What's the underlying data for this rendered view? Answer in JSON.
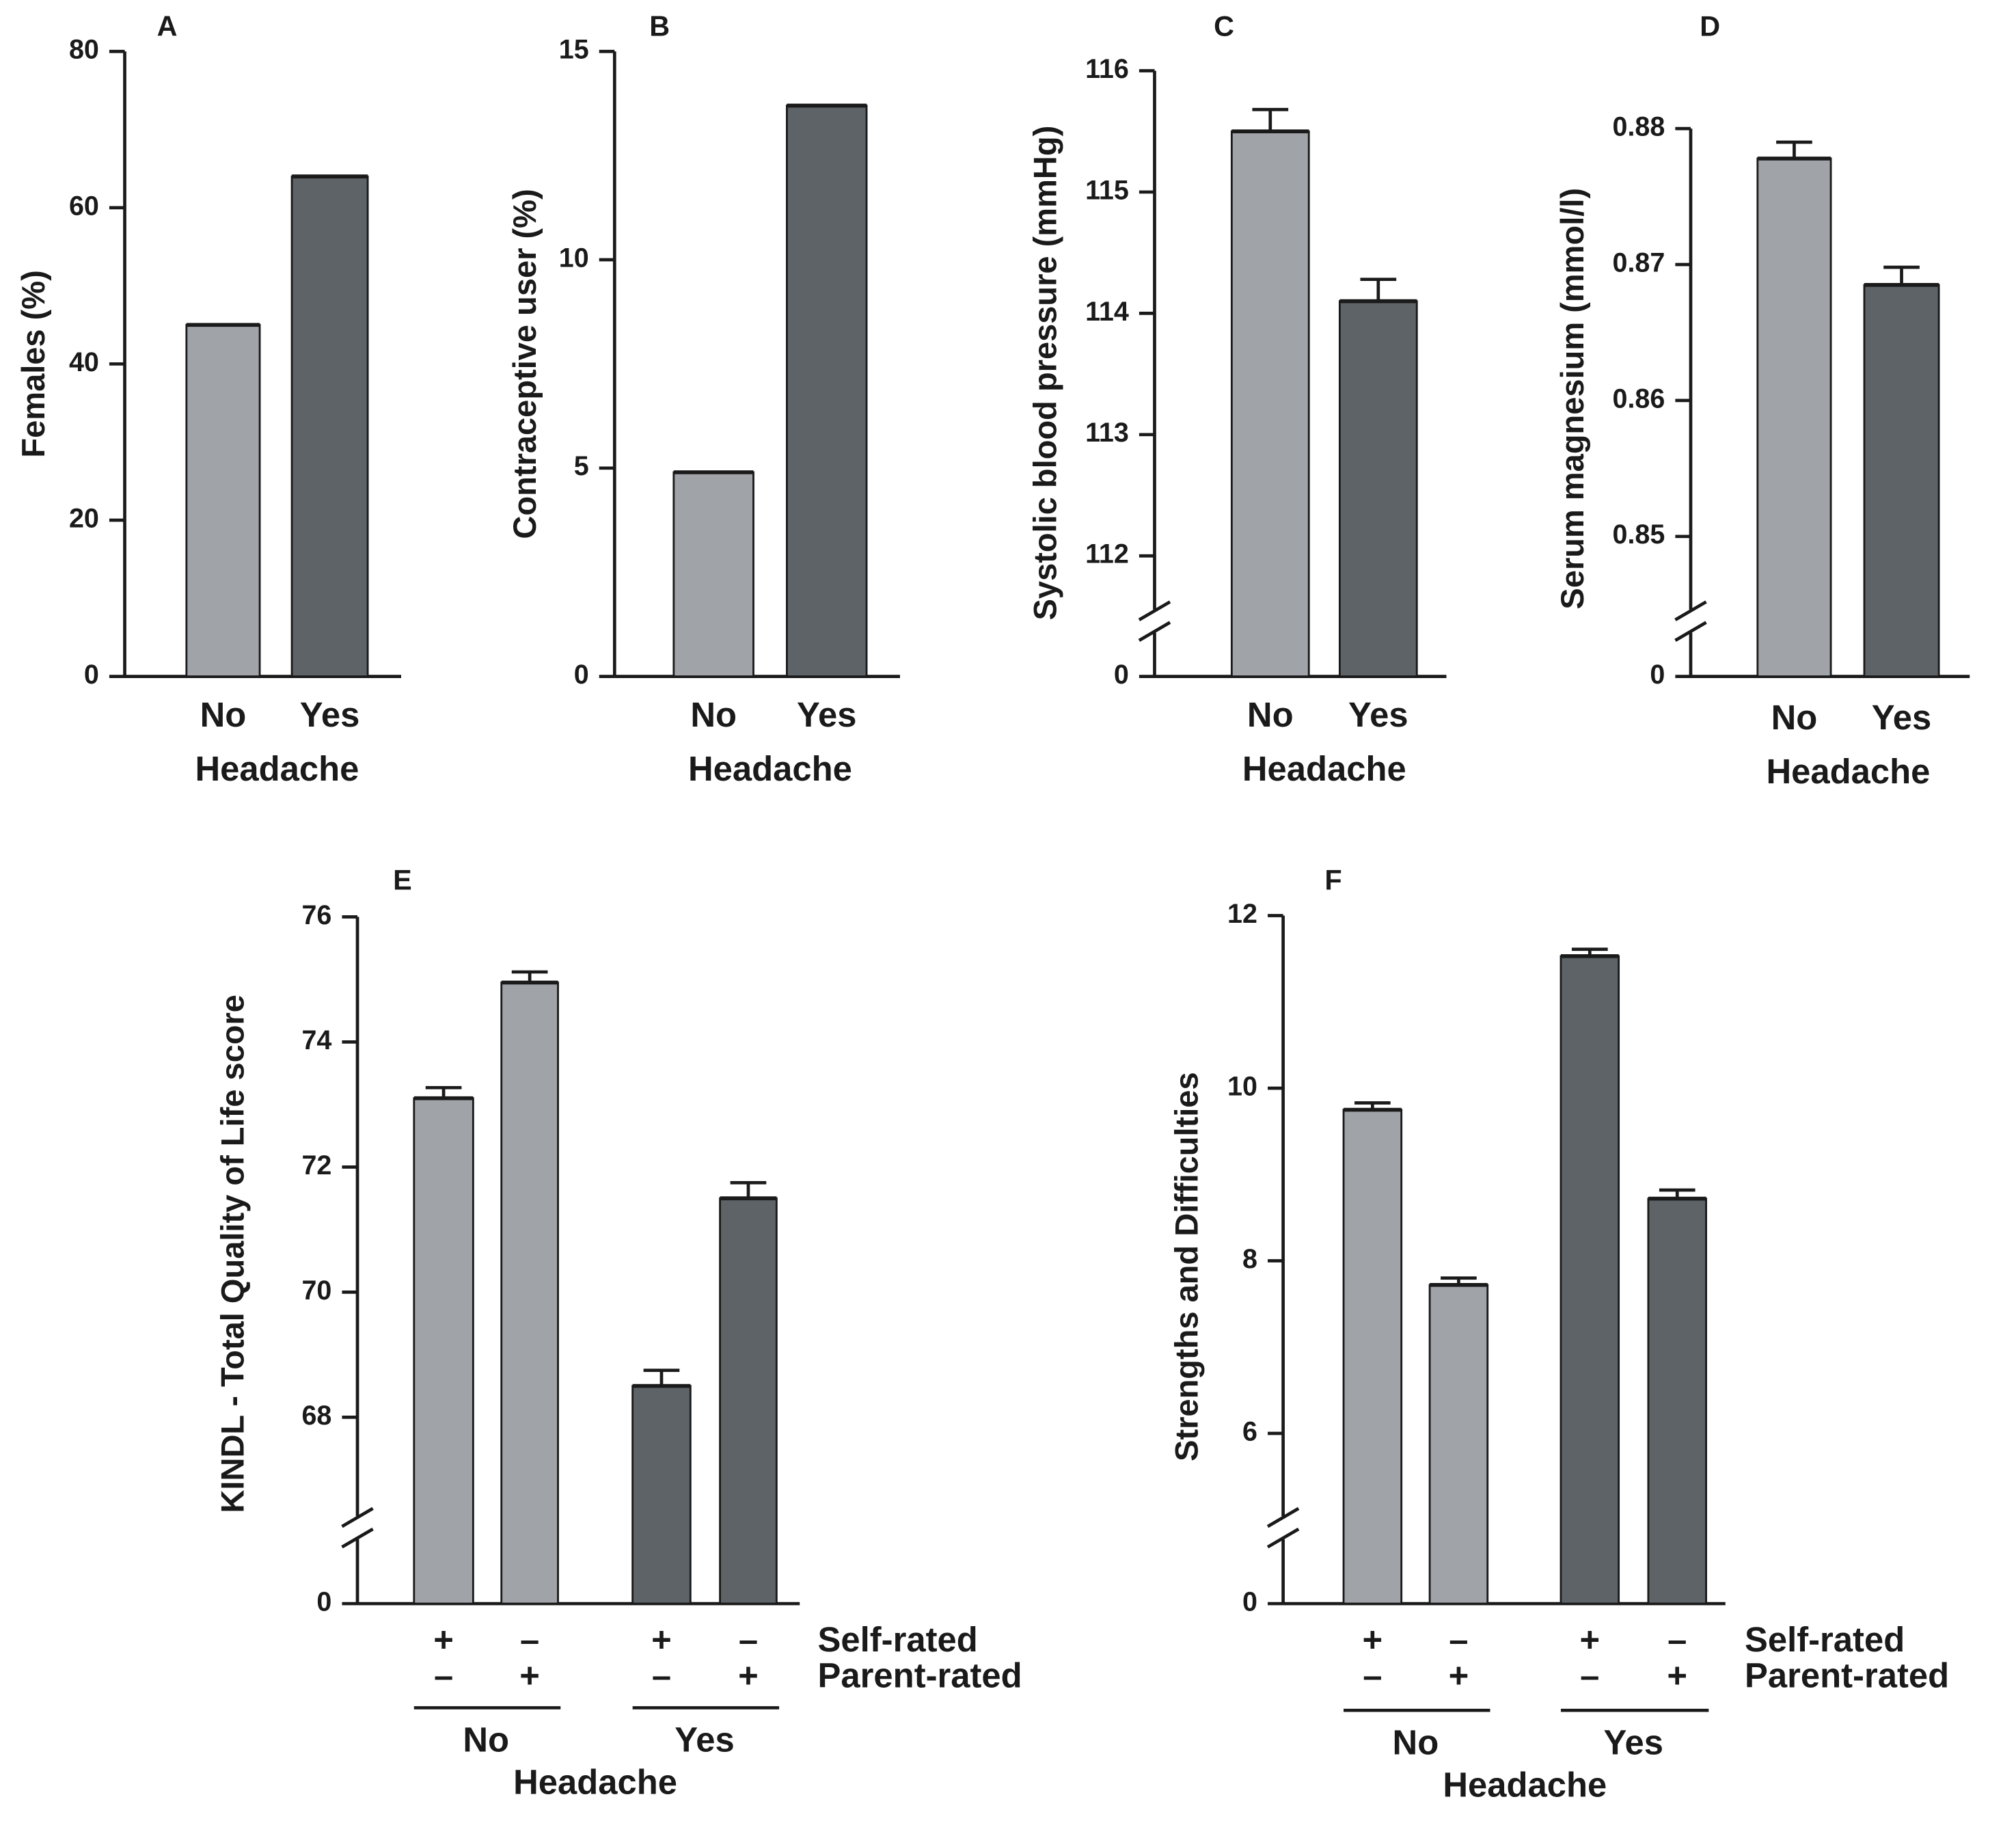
{
  "chart_data": [
    {
      "type": "bar",
      "panel": "A",
      "y_label": "Females (%)",
      "x_label": "Headache",
      "categories": [
        "No",
        "Yes"
      ],
      "values": [
        45,
        64
      ],
      "colors": [
        "#a0a3a8",
        "#5d6367"
      ],
      "ylim": [
        0,
        80
      ],
      "yticks": [
        0,
        20,
        40,
        60,
        80
      ]
    },
    {
      "type": "bar",
      "panel": "B",
      "y_label": "Contraceptive user (%)",
      "x_label": "Headache",
      "categories": [
        "No",
        "Yes"
      ],
      "values": [
        4.9,
        13.7
      ],
      "colors": [
        "#a0a3a8",
        "#5d6367"
      ],
      "ylim": [
        0,
        15
      ],
      "yticks": [
        0,
        5,
        10,
        15
      ]
    },
    {
      "type": "bar",
      "panel": "C",
      "y_label": "Systolic blood pressure (mmHg)",
      "x_label": "Headache",
      "categories": [
        "No",
        "Yes"
      ],
      "values": [
        115.5,
        114.1
      ],
      "errors": [
        0.18,
        0.18
      ],
      "colors": [
        "#a0a3a8",
        "#5d6367"
      ],
      "ylim": [
        0,
        116
      ],
      "axis_break": [
        0,
        111.6
      ],
      "yticks": [
        0,
        112,
        113,
        114,
        115,
        116
      ]
    },
    {
      "type": "bar",
      "panel": "D",
      "y_label": "Serum magnesium (mmol/l)",
      "x_label": "Headache",
      "categories": [
        "No",
        "Yes"
      ],
      "values": [
        0.8778,
        0.8685
      ],
      "errors": [
        0.0012,
        0.0013
      ],
      "colors": [
        "#a0a3a8",
        "#5d6367"
      ],
      "ylim": [
        0,
        0.88
      ],
      "axis_break": [
        0,
        0.845
      ],
      "yticks": [
        0,
        0.85,
        0.86,
        0.87,
        0.88
      ]
    },
    {
      "type": "grouped_bar",
      "panel": "E",
      "y_label": "KINDL - Total Quality of Life score",
      "x_label": "Headache",
      "groups": [
        "No",
        "Yes"
      ],
      "row_labels": [
        "Self-rated",
        "Parent-rated"
      ],
      "signs": [
        [
          "+",
          "–",
          "+",
          "–"
        ],
        [
          "–",
          "+",
          "–",
          "+"
        ]
      ],
      "values": [
        73.1,
        74.95,
        68.5,
        71.5
      ],
      "errors": [
        0.17,
        0.17,
        0.25,
        0.25
      ],
      "colors": [
        "#a0a3a8",
        "#a0a3a8",
        "#5d6367",
        "#5d6367"
      ],
      "ylim": [
        0,
        76
      ],
      "axis_break": [
        0,
        66.5
      ],
      "yticks": [
        0,
        68,
        70,
        72,
        74,
        76
      ]
    },
    {
      "type": "grouped_bar",
      "panel": "F",
      "y_label": "Strengths and Difficulties",
      "x_label": "Headache",
      "groups": [
        "No",
        "Yes"
      ],
      "row_labels": [
        "Self-rated",
        "Parent-rated"
      ],
      "signs": [
        [
          "+",
          "–",
          "+",
          "–"
        ],
        [
          "–",
          "+",
          "–",
          "+"
        ]
      ],
      "values": [
        9.75,
        7.72,
        11.53,
        8.72
      ],
      "errors": [
        0.08,
        0.08,
        0.08,
        0.1
      ],
      "colors": [
        "#a0a3a8",
        "#a0a3a8",
        "#5d6367",
        "#5d6367"
      ],
      "ylim": [
        0,
        12
      ],
      "axis_break": [
        0,
        5.1
      ],
      "yticks": [
        0,
        6,
        8,
        10,
        12
      ]
    }
  ]
}
